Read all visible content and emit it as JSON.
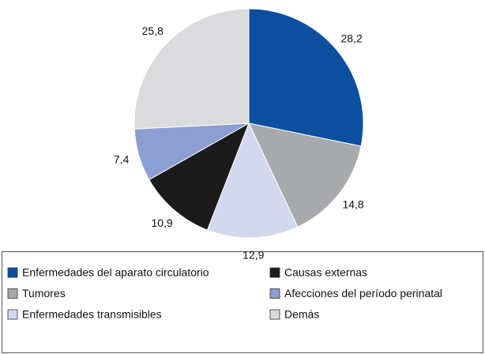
{
  "chart_data": {
    "type": "pie",
    "categories": [
      "Enfermedades del aparato circulatorio",
      "Tumores",
      "Enfermedades transmisibles",
      "Causas externas",
      "Afecciones del período perinatal",
      "Demás"
    ],
    "values": [
      28.2,
      14.8,
      12.9,
      10.9,
      7.4,
      25.8
    ],
    "value_labels": [
      "28,2",
      "14,8",
      "12,9",
      "10,9",
      "7,4",
      "25,8"
    ],
    "colors": [
      "#0b4f9e",
      "#a7a9ac",
      "#d3d8ee",
      "#1b1b1b",
      "#8c9ed2",
      "#dbdbdd"
    ]
  }
}
